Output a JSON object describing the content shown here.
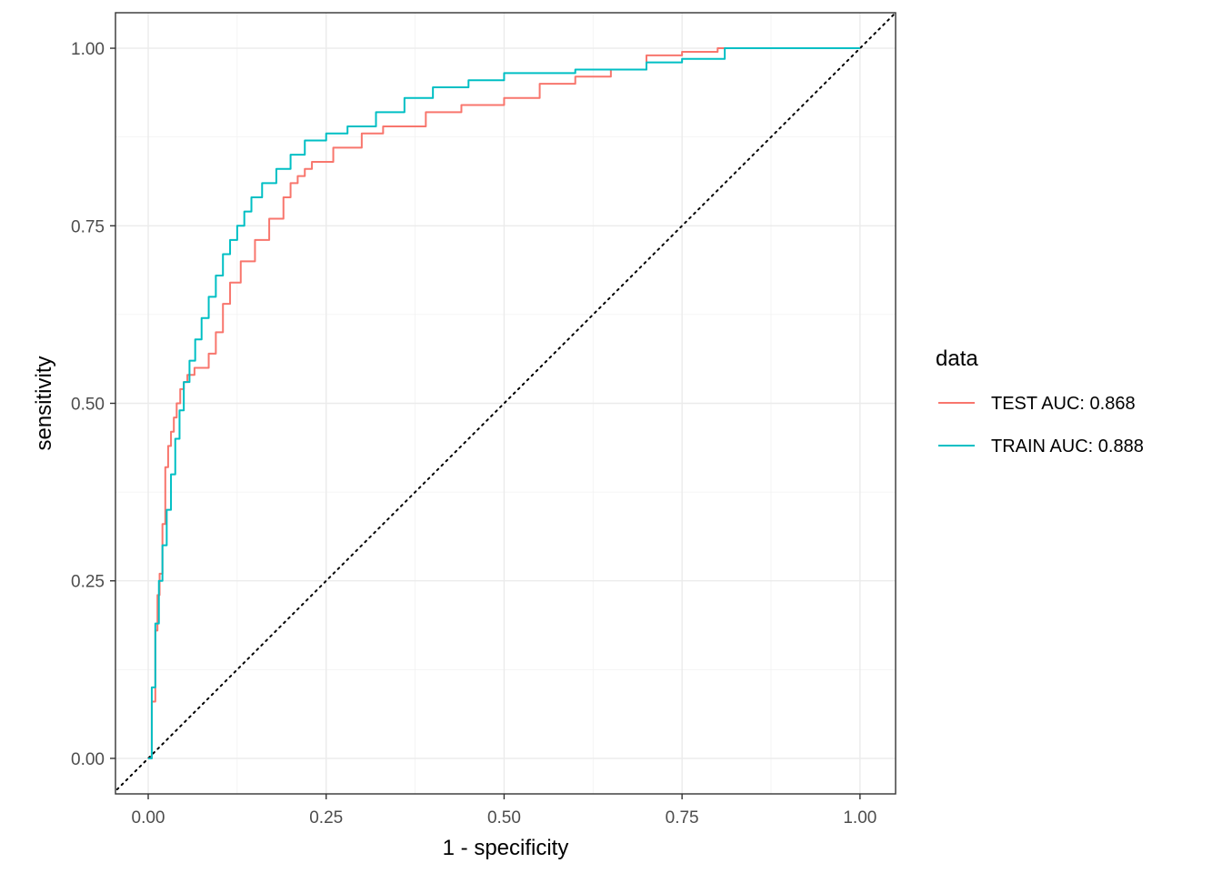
{
  "chart_data": {
    "type": "line",
    "title": "",
    "xlabel": "1 - specificity",
    "ylabel": "sensitivity",
    "xlim": [
      -0.046,
      1.05
    ],
    "ylim": [
      -0.05,
      1.05
    ],
    "x_ticks": [
      0,
      0.25,
      0.5,
      0.75,
      1
    ],
    "x_tick_labels": [
      "0.00",
      "0.25",
      "0.50",
      "0.75",
      "1.00"
    ],
    "y_ticks": [
      0,
      0.25,
      0.5,
      0.75,
      1
    ],
    "y_tick_labels": [
      "0.00",
      "0.25",
      "0.50",
      "0.75",
      "1.00"
    ],
    "grid": true,
    "legend": {
      "title": "data",
      "position": "right"
    },
    "reference_line": {
      "style": "dotted",
      "x": [
        -0.05,
        1.05
      ],
      "y": [
        -0.05,
        1.05
      ]
    },
    "series": [
      {
        "name": "TEST  AUC:  0.868",
        "color": "#F8766D",
        "x": [
          0,
          0.005,
          0.005,
          0.01,
          0.01,
          0.013,
          0.013,
          0.016,
          0.016,
          0.02,
          0.02,
          0.024,
          0.024,
          0.028,
          0.028,
          0.032,
          0.032,
          0.036,
          0.036,
          0.04,
          0.04,
          0.045,
          0.045,
          0.05,
          0.05,
          0.055,
          0.055,
          0.065,
          0.065,
          0.085,
          0.085,
          0.095,
          0.095,
          0.105,
          0.105,
          0.115,
          0.115,
          0.13,
          0.13,
          0.15,
          0.15,
          0.17,
          0.17,
          0.19,
          0.19,
          0.2,
          0.2,
          0.21,
          0.21,
          0.22,
          0.22,
          0.23,
          0.23,
          0.26,
          0.26,
          0.3,
          0.3,
          0.33,
          0.33,
          0.39,
          0.39,
          0.44,
          0.44,
          0.5,
          0.5,
          0.55,
          0.55,
          0.6,
          0.6,
          0.65,
          0.65,
          0.7,
          0.7,
          0.75,
          0.75,
          0.8,
          0.8,
          1.0
        ],
        "y": [
          0,
          0,
          0.08,
          0.08,
          0.18,
          0.18,
          0.23,
          0.23,
          0.26,
          0.26,
          0.33,
          0.33,
          0.41,
          0.41,
          0.44,
          0.44,
          0.46,
          0.46,
          0.48,
          0.48,
          0.5,
          0.5,
          0.52,
          0.52,
          0.53,
          0.53,
          0.54,
          0.54,
          0.55,
          0.55,
          0.57,
          0.57,
          0.6,
          0.6,
          0.64,
          0.64,
          0.67,
          0.67,
          0.7,
          0.7,
          0.73,
          0.73,
          0.76,
          0.76,
          0.79,
          0.79,
          0.81,
          0.81,
          0.82,
          0.82,
          0.83,
          0.83,
          0.84,
          0.84,
          0.86,
          0.86,
          0.88,
          0.88,
          0.89,
          0.89,
          0.91,
          0.91,
          0.92,
          0.92,
          0.93,
          0.93,
          0.95,
          0.95,
          0.96,
          0.96,
          0.97,
          0.97,
          0.99,
          0.99,
          0.995,
          0.995,
          1.0,
          1.0
        ]
      },
      {
        "name": "TRAIN  AUC:  0.888",
        "color": "#00BFC4",
        "x": [
          0,
          0.005,
          0.005,
          0.01,
          0.01,
          0.015,
          0.015,
          0.02,
          0.02,
          0.026,
          0.026,
          0.032,
          0.032,
          0.038,
          0.038,
          0.044,
          0.044,
          0.05,
          0.05,
          0.058,
          0.058,
          0.066,
          0.066,
          0.075,
          0.075,
          0.085,
          0.085,
          0.095,
          0.095,
          0.105,
          0.105,
          0.115,
          0.115,
          0.125,
          0.125,
          0.135,
          0.135,
          0.145,
          0.145,
          0.16,
          0.16,
          0.18,
          0.18,
          0.2,
          0.2,
          0.22,
          0.22,
          0.25,
          0.25,
          0.28,
          0.28,
          0.32,
          0.32,
          0.36,
          0.36,
          0.4,
          0.4,
          0.45,
          0.45,
          0.5,
          0.5,
          0.6,
          0.6,
          0.7,
          0.7,
          0.75,
          0.75,
          0.81,
          0.81,
          1.0
        ],
        "y": [
          0,
          0,
          0.1,
          0.1,
          0.19,
          0.19,
          0.25,
          0.25,
          0.3,
          0.3,
          0.35,
          0.35,
          0.4,
          0.4,
          0.45,
          0.45,
          0.49,
          0.49,
          0.53,
          0.53,
          0.56,
          0.56,
          0.59,
          0.59,
          0.62,
          0.62,
          0.65,
          0.65,
          0.68,
          0.68,
          0.71,
          0.71,
          0.73,
          0.73,
          0.75,
          0.75,
          0.77,
          0.77,
          0.79,
          0.79,
          0.81,
          0.81,
          0.83,
          0.83,
          0.85,
          0.85,
          0.87,
          0.87,
          0.88,
          0.88,
          0.89,
          0.89,
          0.91,
          0.91,
          0.93,
          0.93,
          0.945,
          0.945,
          0.955,
          0.955,
          0.965,
          0.965,
          0.97,
          0.97,
          0.98,
          0.98,
          0.985,
          0.985,
          1.0,
          1.0
        ]
      }
    ]
  }
}
